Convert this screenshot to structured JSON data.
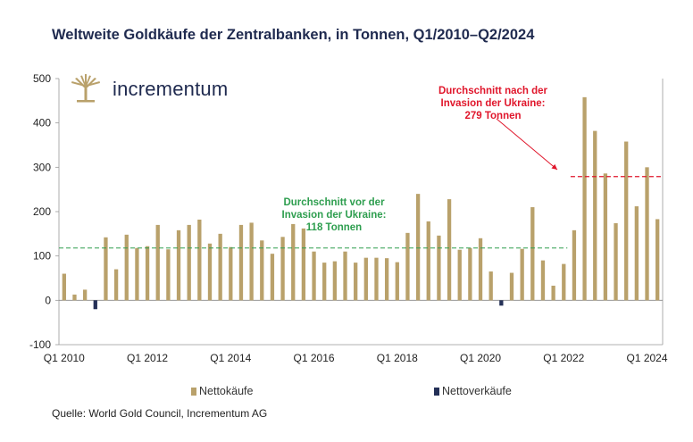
{
  "title": "Weltweite Goldkäufe der Zentralbanken, in Tonnen, Q1/2010–Q2/2024",
  "brand": {
    "name": "incrementum"
  },
  "legend": {
    "buy_label": "Nettokäufe",
    "sell_label": "Nettoverkäufe"
  },
  "source": "Quelle: World Gold Council, Incrementum AG",
  "colors": {
    "buy": "#b9a16b",
    "sell": "#243057",
    "avg_before": "#2e9e4f",
    "avg_after": "#e0162b",
    "title": "#1f2a4f"
  },
  "chart_data": {
    "type": "bar",
    "title": "Weltweite Goldkäufe der Zentralbanken, in Tonnen, Q1/2010–Q2/2024",
    "ylim": [
      -100,
      500
    ],
    "yticks": [
      -100,
      0,
      100,
      200,
      300,
      400,
      500
    ],
    "x_tick_labels": [
      "Q1 2010",
      "Q1 2012",
      "Q1 2014",
      "Q1 2016",
      "Q1 2018",
      "Q1 2020",
      "Q1 2022",
      "Q1 2024"
    ],
    "x_tick_every": 8,
    "series": [
      {
        "name": "Nettokäufe / Nettoverkäufe",
        "values": [
          60,
          13,
          24,
          -20,
          142,
          70,
          148,
          118,
          122,
          170,
          115,
          158,
          170,
          182,
          128,
          150,
          120,
          170,
          175,
          135,
          105,
          143,
          172,
          162,
          110,
          85,
          88,
          110,
          85,
          96,
          96,
          95,
          86,
          152,
          240,
          178,
          146,
          228,
          114,
          118,
          140,
          65,
          -12,
          62,
          116,
          210,
          90,
          33,
          82,
          158,
          458,
          382,
          286,
          174,
          358,
          212,
          300,
          183
        ]
      }
    ],
    "averages": [
      {
        "label_lines": [
          "Durchschnitt vor der",
          "Invasion der Ukraine:",
          "118 Tonnen"
        ],
        "value": 118
      },
      {
        "label_lines": [
          "Durchschnitt nach der",
          "Invasion der Ukraine:",
          "279 Tonnen"
        ],
        "value": 279
      }
    ]
  }
}
